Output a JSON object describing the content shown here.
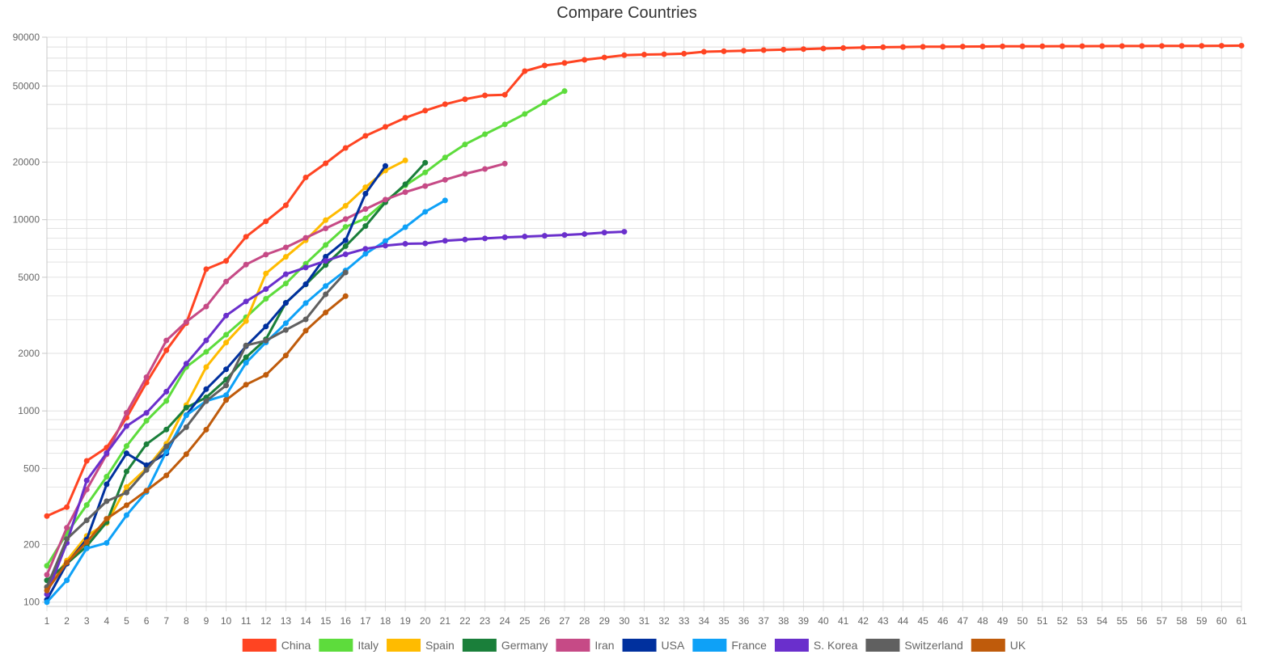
{
  "chart_data": {
    "type": "line",
    "title": "Compare Countries",
    "xlabel": "",
    "ylabel": "",
    "yscale": "log",
    "ylim": [
      95,
      90000
    ],
    "xlim": [
      1,
      61
    ],
    "yticks": [
      100,
      200,
      500,
      1000,
      2000,
      5000,
      10000,
      20000,
      50000,
      90000
    ],
    "grid": true,
    "legend": "bottom",
    "series": [
      {
        "name": "China",
        "color": "#ff4422",
        "x": [
          1,
          2,
          3,
          4,
          5,
          6,
          7,
          8,
          9,
          10,
          11,
          12,
          13,
          14,
          15,
          16,
          17,
          18,
          19,
          20,
          21,
          22,
          23,
          24,
          25,
          26,
          27,
          28,
          29,
          30,
          31,
          32,
          33,
          34,
          35,
          36,
          37,
          38,
          39,
          40,
          41,
          42,
          43,
          44,
          45,
          46,
          47,
          48,
          49,
          50,
          51,
          52,
          53,
          54,
          55,
          56,
          57,
          58,
          59,
          60,
          61
        ],
        "values": [
          282,
          314,
          548,
          643,
          922,
          1406,
          2075,
          2877,
          5509,
          6087,
          8141,
          9802,
          11891,
          16630,
          19716,
          23707,
          27446,
          30587,
          34110,
          37198,
          40171,
          42638,
          44653,
          45000,
          59804,
          64000,
          66000,
          68500,
          70500,
          72500,
          73000,
          73300,
          73800,
          75500,
          76000,
          76500,
          77000,
          77500,
          78000,
          78500,
          79000,
          79500,
          79800,
          80000,
          80200,
          80300,
          80400,
          80500,
          80600,
          80650,
          80700,
          80750,
          80800,
          80850,
          80900,
          80950,
          81000,
          81050,
          81100,
          81200,
          81300
        ]
      },
      {
        "name": "Italy",
        "color": "#5ddc3c",
        "x": [
          1,
          2,
          3,
          4,
          5,
          6,
          7,
          8,
          9,
          10,
          11,
          12,
          13,
          14,
          15,
          16,
          17,
          18,
          19,
          20,
          21,
          22,
          23,
          24,
          25,
          26,
          27
        ],
        "values": [
          155,
          229,
          322,
          453,
          655,
          888,
          1128,
          1694,
          2036,
          2502,
          3089,
          3858,
          4636,
          5883,
          7375,
          9172,
          10149,
          12462,
          15113,
          17660,
          21157,
          24747,
          27980,
          31506,
          35713,
          41035,
          47021
        ]
      },
      {
        "name": "Spain",
        "color": "#ffbb00",
        "x": [
          1,
          2,
          3,
          4,
          5,
          6,
          7,
          8,
          9,
          10,
          11,
          12,
          13,
          14,
          15,
          16,
          17,
          18,
          19
        ],
        "values": [
          120,
          165,
          222,
          259,
          400,
          500,
          673,
          1073,
          1695,
          2277,
          2950,
          5232,
          6391,
          7798,
          9942,
          11826,
          14769,
          18077,
          20410
        ]
      },
      {
        "name": "Germany",
        "color": "#1a7f3a",
        "x": [
          1,
          2,
          3,
          4,
          5,
          6,
          7,
          8,
          9,
          10,
          11,
          12,
          13,
          14,
          15,
          16,
          17,
          18,
          19,
          20
        ],
        "values": [
          130,
          159,
          196,
          262,
          482,
          670,
          799,
          1040,
          1176,
          1457,
          1908,
          2369,
          3675,
          4585,
          5795,
          7272,
          9257,
          12327,
          15320,
          19848
        ]
      },
      {
        "name": "Iran",
        "color": "#c64a86",
        "x": [
          1,
          2,
          3,
          4,
          5,
          6,
          7,
          8,
          9,
          10,
          11,
          12,
          13,
          14,
          15,
          16,
          17,
          18,
          19,
          20,
          21,
          22,
          23,
          24
        ],
        "values": [
          139,
          245,
          388,
          593,
          978,
          1501,
          2336,
          2922,
          3513,
          4747,
          5823,
          6566,
          7161,
          8042,
          9000,
          10075,
          11364,
          12729,
          13938,
          14991,
          16169,
          17361,
          18407,
          19644
        ]
      },
      {
        "name": "USA",
        "color": "#00309e",
        "x": [
          1,
          2,
          3,
          4,
          5,
          6,
          7,
          8,
          9,
          10,
          11,
          12,
          13,
          14,
          15,
          16,
          17,
          18
        ],
        "values": [
          103,
          159,
          213,
          413,
          600,
          520,
          600,
          950,
          1300,
          1650,
          2180,
          2765,
          3670,
          4600,
          6400,
          7800,
          13680,
          19100
        ]
      },
      {
        "name": "France",
        "color": "#0ea1f7",
        "x": [
          1,
          2,
          3,
          4,
          5,
          6,
          7,
          8,
          9,
          10,
          11,
          12,
          13,
          14,
          15,
          16,
          17,
          18,
          19,
          20,
          21
        ],
        "values": [
          100,
          130,
          191,
          204,
          285,
          377,
          613,
          949,
          1126,
          1209,
          1784,
          2281,
          2876,
          3661,
          4499,
          5423,
          6633,
          7730,
          9134,
          10995,
          12612
        ]
      },
      {
        "name": "S. Korea",
        "color": "#6a2fcc",
        "x": [
          1,
          2,
          3,
          4,
          5,
          6,
          7,
          8,
          9,
          10,
          11,
          12,
          13,
          14,
          15,
          16,
          17,
          18,
          19,
          20,
          21,
          22,
          23,
          24,
          25,
          26,
          27,
          28,
          29,
          30
        ],
        "values": [
          110,
          204,
          433,
          602,
          833,
          977,
          1261,
          1766,
          2337,
          3150,
          3736,
          4335,
          5186,
          5621,
          6088,
          6593,
          7041,
          7314,
          7478,
          7513,
          7755,
          7869,
          7979,
          8086,
          8162,
          8236,
          8320,
          8413,
          8565,
          8652
        ]
      },
      {
        "name": "Switzerland",
        "color": "#606060",
        "x": [
          1,
          2,
          3,
          4,
          5,
          6,
          7,
          8,
          9,
          10,
          11,
          12,
          13,
          14,
          15,
          16
        ],
        "values": [
          120,
          214,
          268,
          337,
          374,
          491,
          652,
          822,
          1125,
          1359,
          2200,
          2330,
          2650,
          3010,
          4070,
          5294
        ]
      },
      {
        "name": "UK",
        "color": "#bf5b0b",
        "x": [
          1,
          2,
          3,
          4,
          5,
          6,
          7,
          8,
          9,
          10,
          11,
          12,
          13,
          14,
          15,
          16
        ],
        "values": [
          115,
          161,
          206,
          273,
          321,
          383,
          460,
          594,
          798,
          1140,
          1372,
          1543,
          1950,
          2626,
          3269,
          3983
        ]
      }
    ]
  }
}
